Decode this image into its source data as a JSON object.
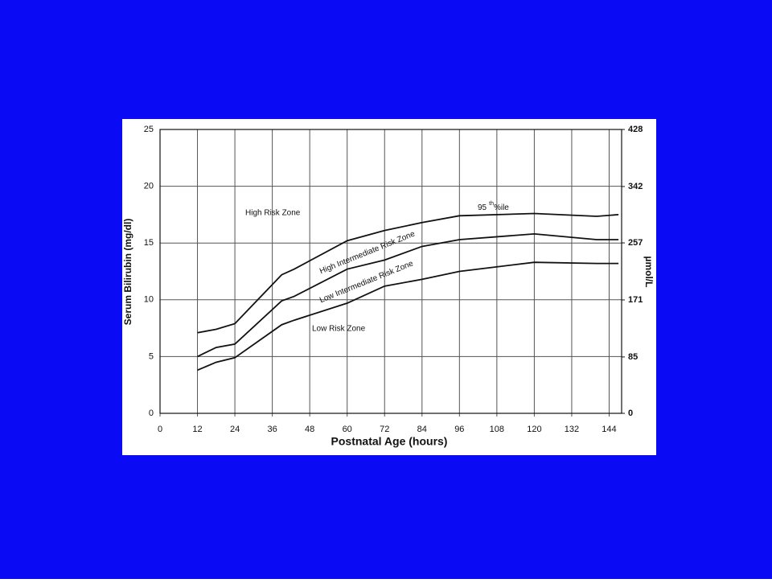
{
  "chart_data": {
    "type": "line",
    "x_label": "Postnatal Age (hours)",
    "y_label": "Serum Bilirubin (mg/dl)",
    "y2_label": "µmol/L",
    "x": [
      12,
      18,
      24,
      39,
      43,
      60,
      72,
      84,
      96,
      120,
      140,
      147
    ],
    "series": [
      {
        "color": "#111111",
        "values": [
          7.1,
          7.4,
          7.9,
          12.2,
          12.7,
          15.2,
          16.1,
          16.8,
          17.4,
          17.6,
          17.35,
          17.5
        ]
      },
      {
        "color": "#111111",
        "values": [
          5.0,
          5.8,
          6.1,
          9.9,
          10.3,
          12.7,
          13.5,
          14.7,
          15.3,
          15.8,
          15.3,
          15.3
        ]
      },
      {
        "color": "#111111",
        "values": [
          3.8,
          4.5,
          4.9,
          7.8,
          8.2,
          9.7,
          11.2,
          11.8,
          12.5,
          13.3,
          13.2,
          13.2
        ]
      }
    ],
    "xlim": [
      0,
      148
    ],
    "xticks": [
      0,
      12,
      24,
      36,
      48,
      60,
      72,
      84,
      96,
      108,
      120,
      132,
      144
    ],
    "ylim": [
      0,
      25
    ],
    "yticks": [
      0,
      5,
      10,
      15,
      20,
      25
    ],
    "y2lim": [
      0,
      428
    ],
    "y2ticks": [
      0,
      85,
      171,
      257,
      342,
      428
    ],
    "grid": true,
    "annotations": [
      "High Risk Zone",
      "High Intermediate Risk Zone",
      "Low Intermediate Risk Zone",
      "Low Risk Zone"
    ],
    "percentile_label": {
      "number": "95",
      "sup": "th",
      "rest": "%ile"
    }
  }
}
